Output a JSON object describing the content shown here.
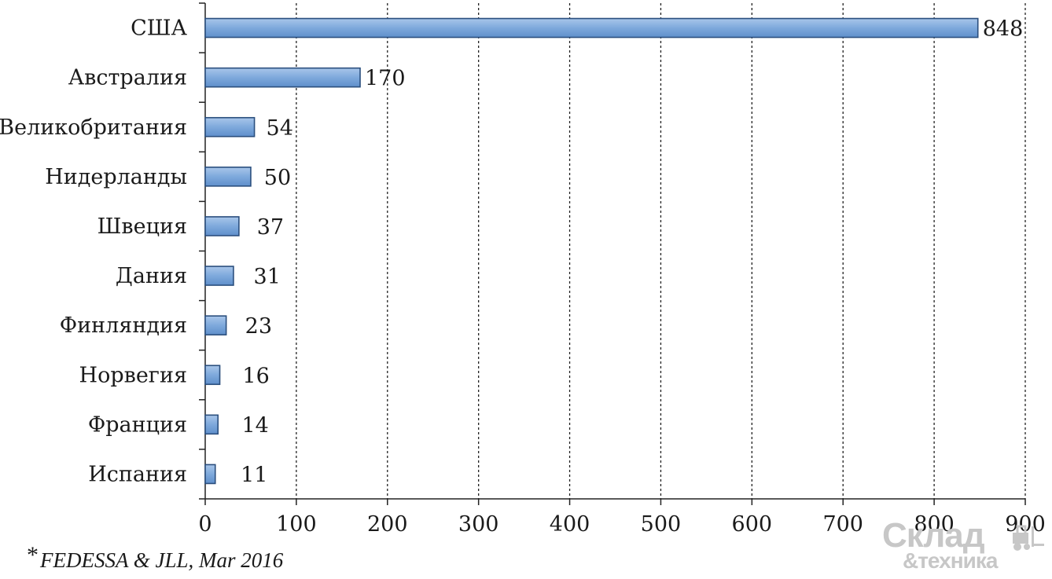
{
  "chart_data": {
    "type": "bar",
    "orientation": "horizontal",
    "categories": [
      "США",
      "Австралия",
      "Великобритания",
      "Нидерланды",
      "Швеция",
      "Дания",
      "Финляндия",
      "Норвегия",
      "Франция",
      "Испания"
    ],
    "values": [
      848,
      170,
      54,
      50,
      37,
      31,
      23,
      16,
      14,
      11
    ],
    "data_labels": [
      "848",
      "170",
      "54",
      "50",
      "37",
      "31",
      "23",
      "16",
      "14",
      "11"
    ],
    "xlim": [
      0,
      900
    ],
    "x_ticks": [
      0,
      100,
      200,
      300,
      400,
      500,
      600,
      700,
      800,
      900
    ],
    "x_tick_labels": [
      "0",
      "100",
      "200",
      "300",
      "400",
      "500",
      "600",
      "700",
      "800",
      "900"
    ],
    "grid": "vertical dashed",
    "bar_color": "#7ea9dc",
    "bar_edge_color": "#2b4f7e",
    "title": "",
    "xlabel": "",
    "ylabel": ""
  },
  "footnote": {
    "star": "*",
    "text": "FEDESSA & JLL, Mar 2016"
  },
  "watermark": {
    "line1": "Склад",
    "line2": "&техника",
    "icon": "forklift-icon"
  }
}
